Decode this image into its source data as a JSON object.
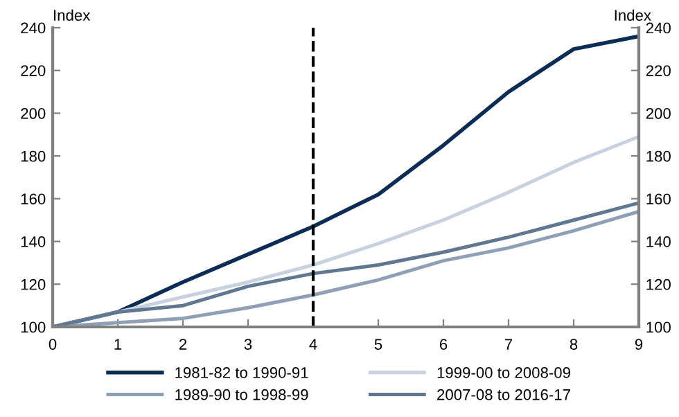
{
  "chart_data": {
    "type": "line",
    "ylabel": "Index",
    "y2label": "Index",
    "x": [
      0,
      1,
      2,
      3,
      4,
      5,
      6,
      7,
      8,
      9
    ],
    "series": [
      {
        "name": "1981-82 to 1990-91",
        "color": "#0b2c55",
        "values": [
          100,
          107,
          121,
          134,
          147,
          162,
          185,
          210,
          230,
          236
        ]
      },
      {
        "name": "1989-90 to 1998-99",
        "color": "#8fa0b4",
        "values": [
          100,
          102,
          104,
          109,
          115,
          122,
          131,
          137,
          145,
          154
        ]
      },
      {
        "name": "1999-00 to 2008-09",
        "color": "#c8d2de",
        "values": [
          100,
          107,
          114,
          121,
          129,
          139,
          150,
          163,
          177,
          189
        ]
      },
      {
        "name": "2007-08 to 2016-17",
        "color": "#5f7791",
        "values": [
          100,
          107,
          110,
          119,
          125,
          129,
          135,
          142,
          150,
          158
        ]
      }
    ],
    "xlim": [
      0,
      9
    ],
    "xticks": [
      0,
      1,
      2,
      3,
      4,
      5,
      6,
      7,
      8,
      9
    ],
    "ylim": [
      100,
      240
    ],
    "yticks": [
      100,
      120,
      140,
      160,
      180,
      200,
      220,
      240
    ],
    "y2lim": [
      100,
      240
    ],
    "y2ticks": [
      100,
      120,
      140,
      160,
      180,
      200,
      220,
      240
    ],
    "ref_lines": [
      {
        "axis": "x",
        "value": 4,
        "color": "#000000",
        "line_style": "dashed"
      }
    ],
    "grid": false,
    "legend": "bottom",
    "marker": "none",
    "line_style": "solid"
  }
}
